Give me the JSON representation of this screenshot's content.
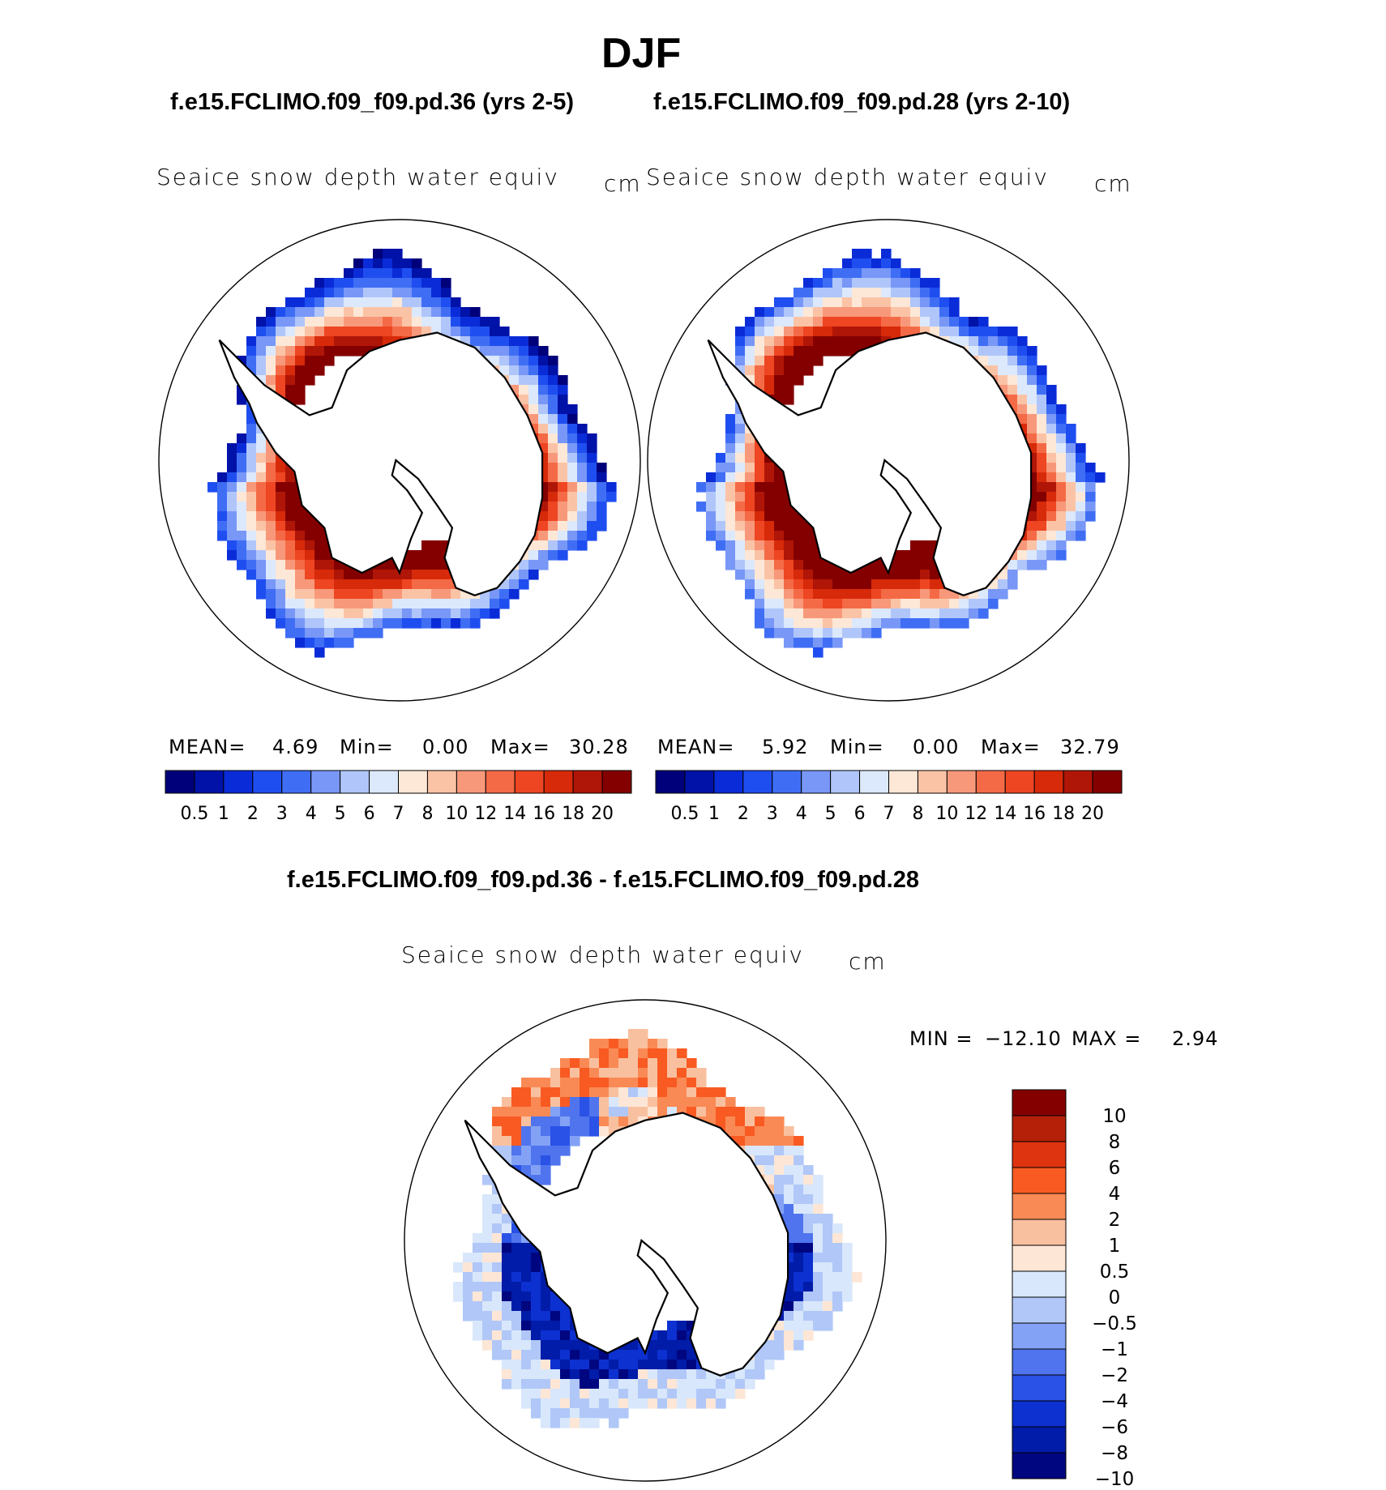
{
  "page": {
    "title": "DJF",
    "case_left": "f.e15.FCLIMO.f09_f09.pd.36 (yrs 2-5)",
    "case_right": "f.e15.FCLIMO.f09_f09.pd.28 (yrs 2-10)",
    "diff_header": "f.e15.FCLIMO.f09_f09.pd.36 - f.e15.FCLIMO.f09_f09.pd.28"
  },
  "chart_data": [
    {
      "type": "heatmap",
      "panel": "left",
      "title": "Seaice snow depth water equiv",
      "units": "cm",
      "stats": {
        "mean_label": "MEAN=",
        "mean": "4.69",
        "min_label": "Min=",
        "min": "0.00",
        "max_label": "Max=",
        "max": "30.28"
      },
      "colorbar_ticks": [
        "0.5",
        "1",
        "2",
        "3",
        "4",
        "5",
        "6",
        "7",
        "8",
        "10",
        "12",
        "14",
        "16",
        "18",
        "20"
      ]
    },
    {
      "type": "heatmap",
      "panel": "right",
      "title": "Seaice snow depth water equiv",
      "units": "cm",
      "stats": {
        "mean_label": "MEAN=",
        "mean": "5.92",
        "min_label": "Min=",
        "min": "0.00",
        "max_label": "Max=",
        "max": "32.79"
      },
      "colorbar_ticks": [
        "0.5",
        "1",
        "2",
        "3",
        "4",
        "5",
        "6",
        "7",
        "8",
        "10",
        "12",
        "14",
        "16",
        "18",
        "20"
      ]
    },
    {
      "type": "heatmap",
      "panel": "difference",
      "title": "Seaice snow depth water equiv",
      "units": "cm",
      "stats": {
        "min_label": "MIN =",
        "min": "−12.10",
        "max_label": "MAX =",
        "max": "2.94"
      },
      "colorbar_ticks": [
        "10",
        "8",
        "6",
        "4",
        "2",
        "1",
        "0.5",
        "0",
        "−0.5",
        "−1",
        "−2",
        "−4",
        "−6",
        "−8",
        "−10"
      ]
    }
  ],
  "colors": {
    "abs_scale": [
      "#00007a",
      "#0012a8",
      "#0a2cd8",
      "#1f4ef0",
      "#3f6ef5",
      "#7897f7",
      "#b0c6fa",
      "#dce8fc",
      "#fde7d6",
      "#fbc3a6",
      "#f8987a",
      "#f46a46",
      "#ee4522",
      "#d72a0a",
      "#b01607",
      "#840000"
    ],
    "diff_scale": [
      "#840000",
      "#b42008",
      "#de3410",
      "#f85a22",
      "#fa8a55",
      "#f9c09f",
      "#fde6d6",
      "#d8e7fb",
      "#b0c7f8",
      "#83a2f5",
      "#4f74ee",
      "#2a52e6",
      "#0d31d0",
      "#001ca8",
      "#000680"
    ],
    "land": "#ffffff",
    "outline": "#000000"
  }
}
